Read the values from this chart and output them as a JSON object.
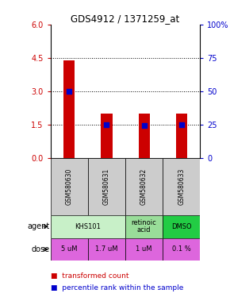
{
  "title": "GDS4912 / 1371259_at",
  "samples": [
    "GSM580630",
    "GSM580631",
    "GSM580632",
    "GSM580633"
  ],
  "bar_values": [
    4.4,
    2.0,
    2.0,
    2.0
  ],
  "blue_dot_values": [
    3.0,
    1.5,
    1.45,
    1.5
  ],
  "ylim": [
    0,
    6
  ],
  "yticks_left": [
    0,
    1.5,
    3,
    4.5,
    6
  ],
  "yticks_right_vals": [
    0,
    25,
    50,
    75,
    100
  ],
  "yticks_right_labels": [
    "0",
    "25",
    "50",
    "75",
    "100%"
  ],
  "hlines": [
    1.5,
    3.0,
    4.5
  ],
  "bar_color": "#cc0000",
  "dot_color": "#0000cc",
  "agent_defs": [
    [
      0,
      1,
      "KHS101",
      "#c8f0c8"
    ],
    [
      2,
      2,
      "retinoic\nacid",
      "#99dd99"
    ],
    [
      3,
      3,
      "DMSO",
      "#22cc44"
    ]
  ],
  "dose_labels": [
    "5 uM",
    "1.7 uM",
    "1 uM",
    "0.1 %"
  ],
  "dose_color": "#dd66dd",
  "sample_bg_color": "#cccccc",
  "legend_bar_color": "#cc0000",
  "legend_dot_color": "#0000cc",
  "bar_width": 0.3
}
